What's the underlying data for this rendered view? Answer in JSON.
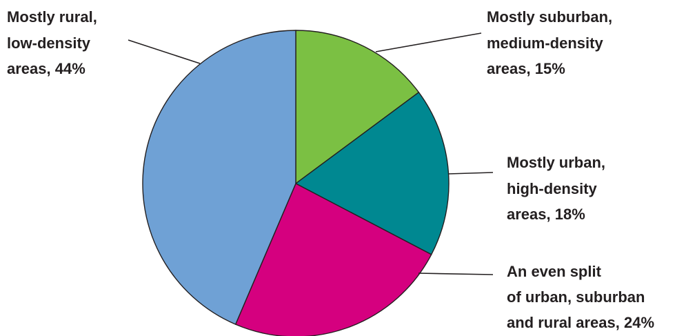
{
  "chart_data": {
    "type": "pie",
    "title": "",
    "legend": "none",
    "slices": [
      {
        "label_lines": [
          "Mostly suburban,",
          "medium-density",
          "areas, 15%"
        ],
        "value": 15,
        "color": "#7bc043"
      },
      {
        "label_lines": [
          "Mostly urban,",
          "high-density",
          "areas, 18%"
        ],
        "value": 18,
        "color": "#008891"
      },
      {
        "label_lines": [
          "An even split",
          "of urban, suburban",
          "and rural areas, 24%"
        ],
        "value": 24,
        "color": "#d5007f"
      },
      {
        "label_lines": [
          "Mostly rural,",
          "low-density",
          "areas, 44%"
        ],
        "value": 44,
        "color": "#6fa1d5"
      }
    ]
  }
}
